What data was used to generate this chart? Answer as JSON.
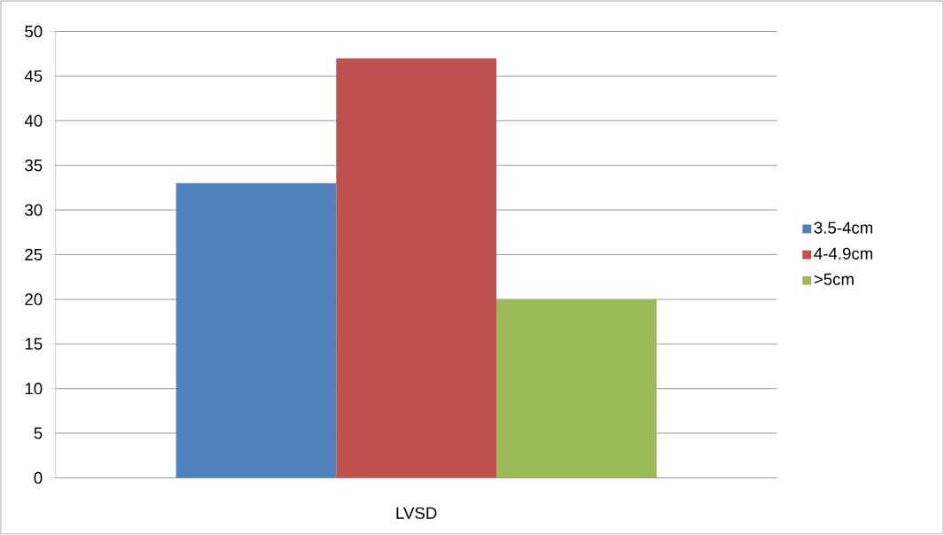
{
  "chart_data": {
    "type": "bar",
    "categories": [
      "LVSD"
    ],
    "series": [
      {
        "name": "3.5-4cm",
        "color": "#4f81bd",
        "values": [
          33
        ]
      },
      {
        "name": "4-4.9cm",
        "color": "#c0504d",
        "values": [
          47
        ]
      },
      {
        "name": ">5cm",
        "color": "#9bbb59",
        "values": [
          20
        ]
      }
    ],
    "ylim": [
      0,
      50
    ],
    "yticks": [
      0,
      5,
      10,
      15,
      20,
      25,
      30,
      35,
      40,
      45,
      50
    ],
    "grid": "y",
    "legend": "right"
  }
}
